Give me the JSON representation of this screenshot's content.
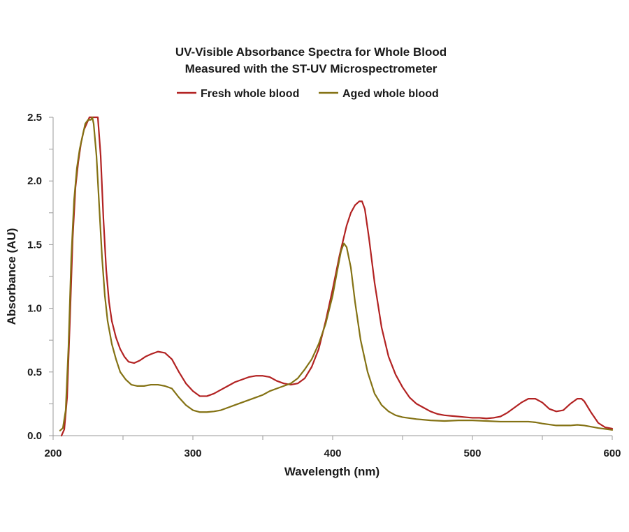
{
  "chart_data": {
    "type": "line",
    "title_lines": [
      "UV-Visible Absorbance Spectra for Whole Blood",
      "Measured with the ST-UV Microspectrometer"
    ],
    "xlabel": "Wavelength (nm)",
    "ylabel": "Absorbance (AU)",
    "xlim": [
      200,
      600
    ],
    "ylim": [
      0,
      2.5
    ],
    "x_ticks": [
      200,
      300,
      400,
      500,
      600
    ],
    "x_tick_labels": [
      "200",
      "300",
      "400",
      "500",
      "600"
    ],
    "y_ticks": [
      0,
      0.5,
      1.0,
      1.5,
      2.0,
      2.5
    ],
    "y_tick_labels": [
      "0.0",
      "0.5",
      "1.0",
      "1.5",
      "2.0",
      "2.5"
    ],
    "grid": false,
    "legend_position": "top-center",
    "series": [
      {
        "name": "Fresh whole blood",
        "color": "#b22222",
        "points": [
          [
            206,
            0.0
          ],
          [
            208,
            0.05
          ],
          [
            210,
            0.3
          ],
          [
            212,
            0.9
          ],
          [
            214,
            1.55
          ],
          [
            216,
            1.95
          ],
          [
            218,
            2.15
          ],
          [
            220,
            2.3
          ],
          [
            222,
            2.4
          ],
          [
            224,
            2.45
          ],
          [
            226,
            2.5
          ],
          [
            228,
            2.5
          ],
          [
            230,
            2.5
          ],
          [
            232,
            2.5
          ],
          [
            234,
            2.2
          ],
          [
            236,
            1.7
          ],
          [
            238,
            1.3
          ],
          [
            240,
            1.05
          ],
          [
            242,
            0.9
          ],
          [
            245,
            0.77
          ],
          [
            248,
            0.68
          ],
          [
            251,
            0.62
          ],
          [
            254,
            0.58
          ],
          [
            258,
            0.57
          ],
          [
            262,
            0.59
          ],
          [
            266,
            0.62
          ],
          [
            270,
            0.64
          ],
          [
            275,
            0.66
          ],
          [
            280,
            0.65
          ],
          [
            285,
            0.6
          ],
          [
            290,
            0.5
          ],
          [
            295,
            0.41
          ],
          [
            300,
            0.35
          ],
          [
            305,
            0.31
          ],
          [
            310,
            0.31
          ],
          [
            315,
            0.33
          ],
          [
            320,
            0.36
          ],
          [
            325,
            0.39
          ],
          [
            330,
            0.42
          ],
          [
            335,
            0.44
          ],
          [
            340,
            0.46
          ],
          [
            345,
            0.47
          ],
          [
            350,
            0.47
          ],
          [
            355,
            0.46
          ],
          [
            360,
            0.43
          ],
          [
            365,
            0.41
          ],
          [
            370,
            0.4
          ],
          [
            375,
            0.41
          ],
          [
            380,
            0.45
          ],
          [
            385,
            0.54
          ],
          [
            390,
            0.68
          ],
          [
            395,
            0.9
          ],
          [
            400,
            1.15
          ],
          [
            405,
            1.42
          ],
          [
            410,
            1.65
          ],
          [
            413,
            1.75
          ],
          [
            416,
            1.81
          ],
          [
            419,
            1.84
          ],
          [
            421,
            1.84
          ],
          [
            423,
            1.78
          ],
          [
            426,
            1.55
          ],
          [
            430,
            1.2
          ],
          [
            435,
            0.85
          ],
          [
            440,
            0.62
          ],
          [
            445,
            0.48
          ],
          [
            450,
            0.38
          ],
          [
            455,
            0.3
          ],
          [
            460,
            0.25
          ],
          [
            465,
            0.22
          ],
          [
            470,
            0.19
          ],
          [
            475,
            0.17
          ],
          [
            480,
            0.16
          ],
          [
            485,
            0.155
          ],
          [
            490,
            0.15
          ],
          [
            495,
            0.145
          ],
          [
            500,
            0.14
          ],
          [
            505,
            0.14
          ],
          [
            510,
            0.135
          ],
          [
            515,
            0.14
          ],
          [
            520,
            0.15
          ],
          [
            525,
            0.18
          ],
          [
            530,
            0.22
          ],
          [
            535,
            0.26
          ],
          [
            540,
            0.29
          ],
          [
            545,
            0.29
          ],
          [
            550,
            0.26
          ],
          [
            555,
            0.21
          ],
          [
            560,
            0.19
          ],
          [
            565,
            0.2
          ],
          [
            570,
            0.25
          ],
          [
            575,
            0.29
          ],
          [
            578,
            0.29
          ],
          [
            580,
            0.27
          ],
          [
            585,
            0.18
          ],
          [
            590,
            0.1
          ],
          [
            595,
            0.065
          ],
          [
            600,
            0.055
          ]
        ]
      },
      {
        "name": "Aged whole blood",
        "color": "#847214",
        "points": [
          [
            205,
            0.04
          ],
          [
            207,
            0.06
          ],
          [
            209,
            0.2
          ],
          [
            211,
            0.7
          ],
          [
            213,
            1.4
          ],
          [
            215,
            1.85
          ],
          [
            217,
            2.1
          ],
          [
            219,
            2.25
          ],
          [
            221,
            2.35
          ],
          [
            223,
            2.45
          ],
          [
            225,
            2.48
          ],
          [
            227,
            2.48
          ],
          [
            228,
            2.5
          ],
          [
            229,
            2.45
          ],
          [
            231,
            2.2
          ],
          [
            233,
            1.8
          ],
          [
            235,
            1.4
          ],
          [
            237,
            1.1
          ],
          [
            239,
            0.9
          ],
          [
            242,
            0.72
          ],
          [
            245,
            0.6
          ],
          [
            248,
            0.5
          ],
          [
            252,
            0.44
          ],
          [
            256,
            0.4
          ],
          [
            260,
            0.39
          ],
          [
            265,
            0.39
          ],
          [
            270,
            0.4
          ],
          [
            275,
            0.4
          ],
          [
            280,
            0.39
          ],
          [
            285,
            0.37
          ],
          [
            290,
            0.3
          ],
          [
            295,
            0.24
          ],
          [
            300,
            0.2
          ],
          [
            305,
            0.185
          ],
          [
            310,
            0.185
          ],
          [
            315,
            0.19
          ],
          [
            320,
            0.2
          ],
          [
            325,
            0.22
          ],
          [
            330,
            0.24
          ],
          [
            335,
            0.26
          ],
          [
            340,
            0.28
          ],
          [
            345,
            0.3
          ],
          [
            350,
            0.32
          ],
          [
            355,
            0.35
          ],
          [
            360,
            0.37
          ],
          [
            365,
            0.39
          ],
          [
            370,
            0.41
          ],
          [
            375,
            0.45
          ],
          [
            380,
            0.52
          ],
          [
            385,
            0.6
          ],
          [
            390,
            0.72
          ],
          [
            395,
            0.88
          ],
          [
            400,
            1.1
          ],
          [
            403,
            1.28
          ],
          [
            406,
            1.45
          ],
          [
            408,
            1.51
          ],
          [
            410,
            1.48
          ],
          [
            413,
            1.32
          ],
          [
            416,
            1.05
          ],
          [
            420,
            0.75
          ],
          [
            425,
            0.5
          ],
          [
            430,
            0.33
          ],
          [
            435,
            0.24
          ],
          [
            440,
            0.19
          ],
          [
            445,
            0.16
          ],
          [
            450,
            0.145
          ],
          [
            460,
            0.13
          ],
          [
            470,
            0.12
          ],
          [
            480,
            0.115
          ],
          [
            490,
            0.12
          ],
          [
            500,
            0.12
          ],
          [
            510,
            0.115
          ],
          [
            520,
            0.11
          ],
          [
            530,
            0.11
          ],
          [
            540,
            0.11
          ],
          [
            545,
            0.105
          ],
          [
            550,
            0.095
          ],
          [
            560,
            0.08
          ],
          [
            570,
            0.08
          ],
          [
            575,
            0.085
          ],
          [
            580,
            0.08
          ],
          [
            590,
            0.06
          ],
          [
            600,
            0.045
          ]
        ]
      }
    ]
  }
}
